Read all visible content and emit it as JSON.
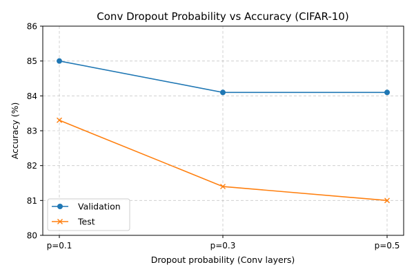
{
  "chart_data": {
    "type": "line",
    "title": "Conv Dropout Probability vs Accuracy (CIFAR-10)",
    "xlabel": "Dropout probability (Conv layers)",
    "ylabel": "Accuracy (%)",
    "categories": [
      "p=0.1",
      "p=0.3",
      "p=0.5"
    ],
    "ylim": [
      80,
      86
    ],
    "yticks": [
      80,
      81,
      82,
      83,
      84,
      85,
      86
    ],
    "grid": true,
    "legend_position": "bottom-left",
    "series": [
      {
        "name": "Validation",
        "values": [
          85.0,
          84.1,
          84.1
        ],
        "color": "#1f77b4",
        "marker": "circle"
      },
      {
        "name": "Test",
        "values": [
          83.3,
          81.4,
          81.0
        ],
        "color": "#ff7f0e",
        "marker": "x"
      }
    ]
  }
}
